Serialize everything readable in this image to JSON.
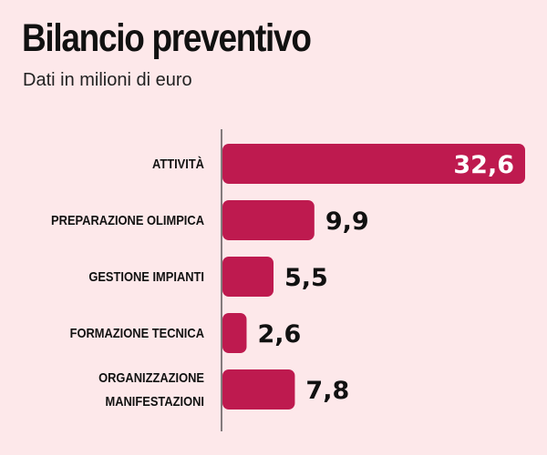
{
  "chart_data": {
    "type": "bar",
    "orientation": "horizontal",
    "title": "Bilancio preventivo",
    "subtitle": "Dati in milioni di euro",
    "categories": [
      [
        "ATTIVITÀ"
      ],
      [
        "PREPARAZIONE OLIMPICA"
      ],
      [
        "GESTIONE IMPIANTI"
      ],
      [
        "FORMAZIONE TECNICA"
      ],
      [
        "ORGANIZZAZIONE",
        "MANIFESTAZIONI"
      ]
    ],
    "values": [
      32.6,
      9.9,
      5.5,
      2.6,
      7.8
    ],
    "value_labels": [
      "32,6",
      "9,9",
      "5,5",
      "2,6",
      "7,8"
    ],
    "xlabel": "",
    "ylabel": "",
    "xlim": [
      0,
      32.6
    ],
    "grid": false,
    "colors": {
      "bar": "#be1a4f",
      "background": "#fde8ea",
      "text": "#111111",
      "inner_label": "#ffffff"
    }
  }
}
